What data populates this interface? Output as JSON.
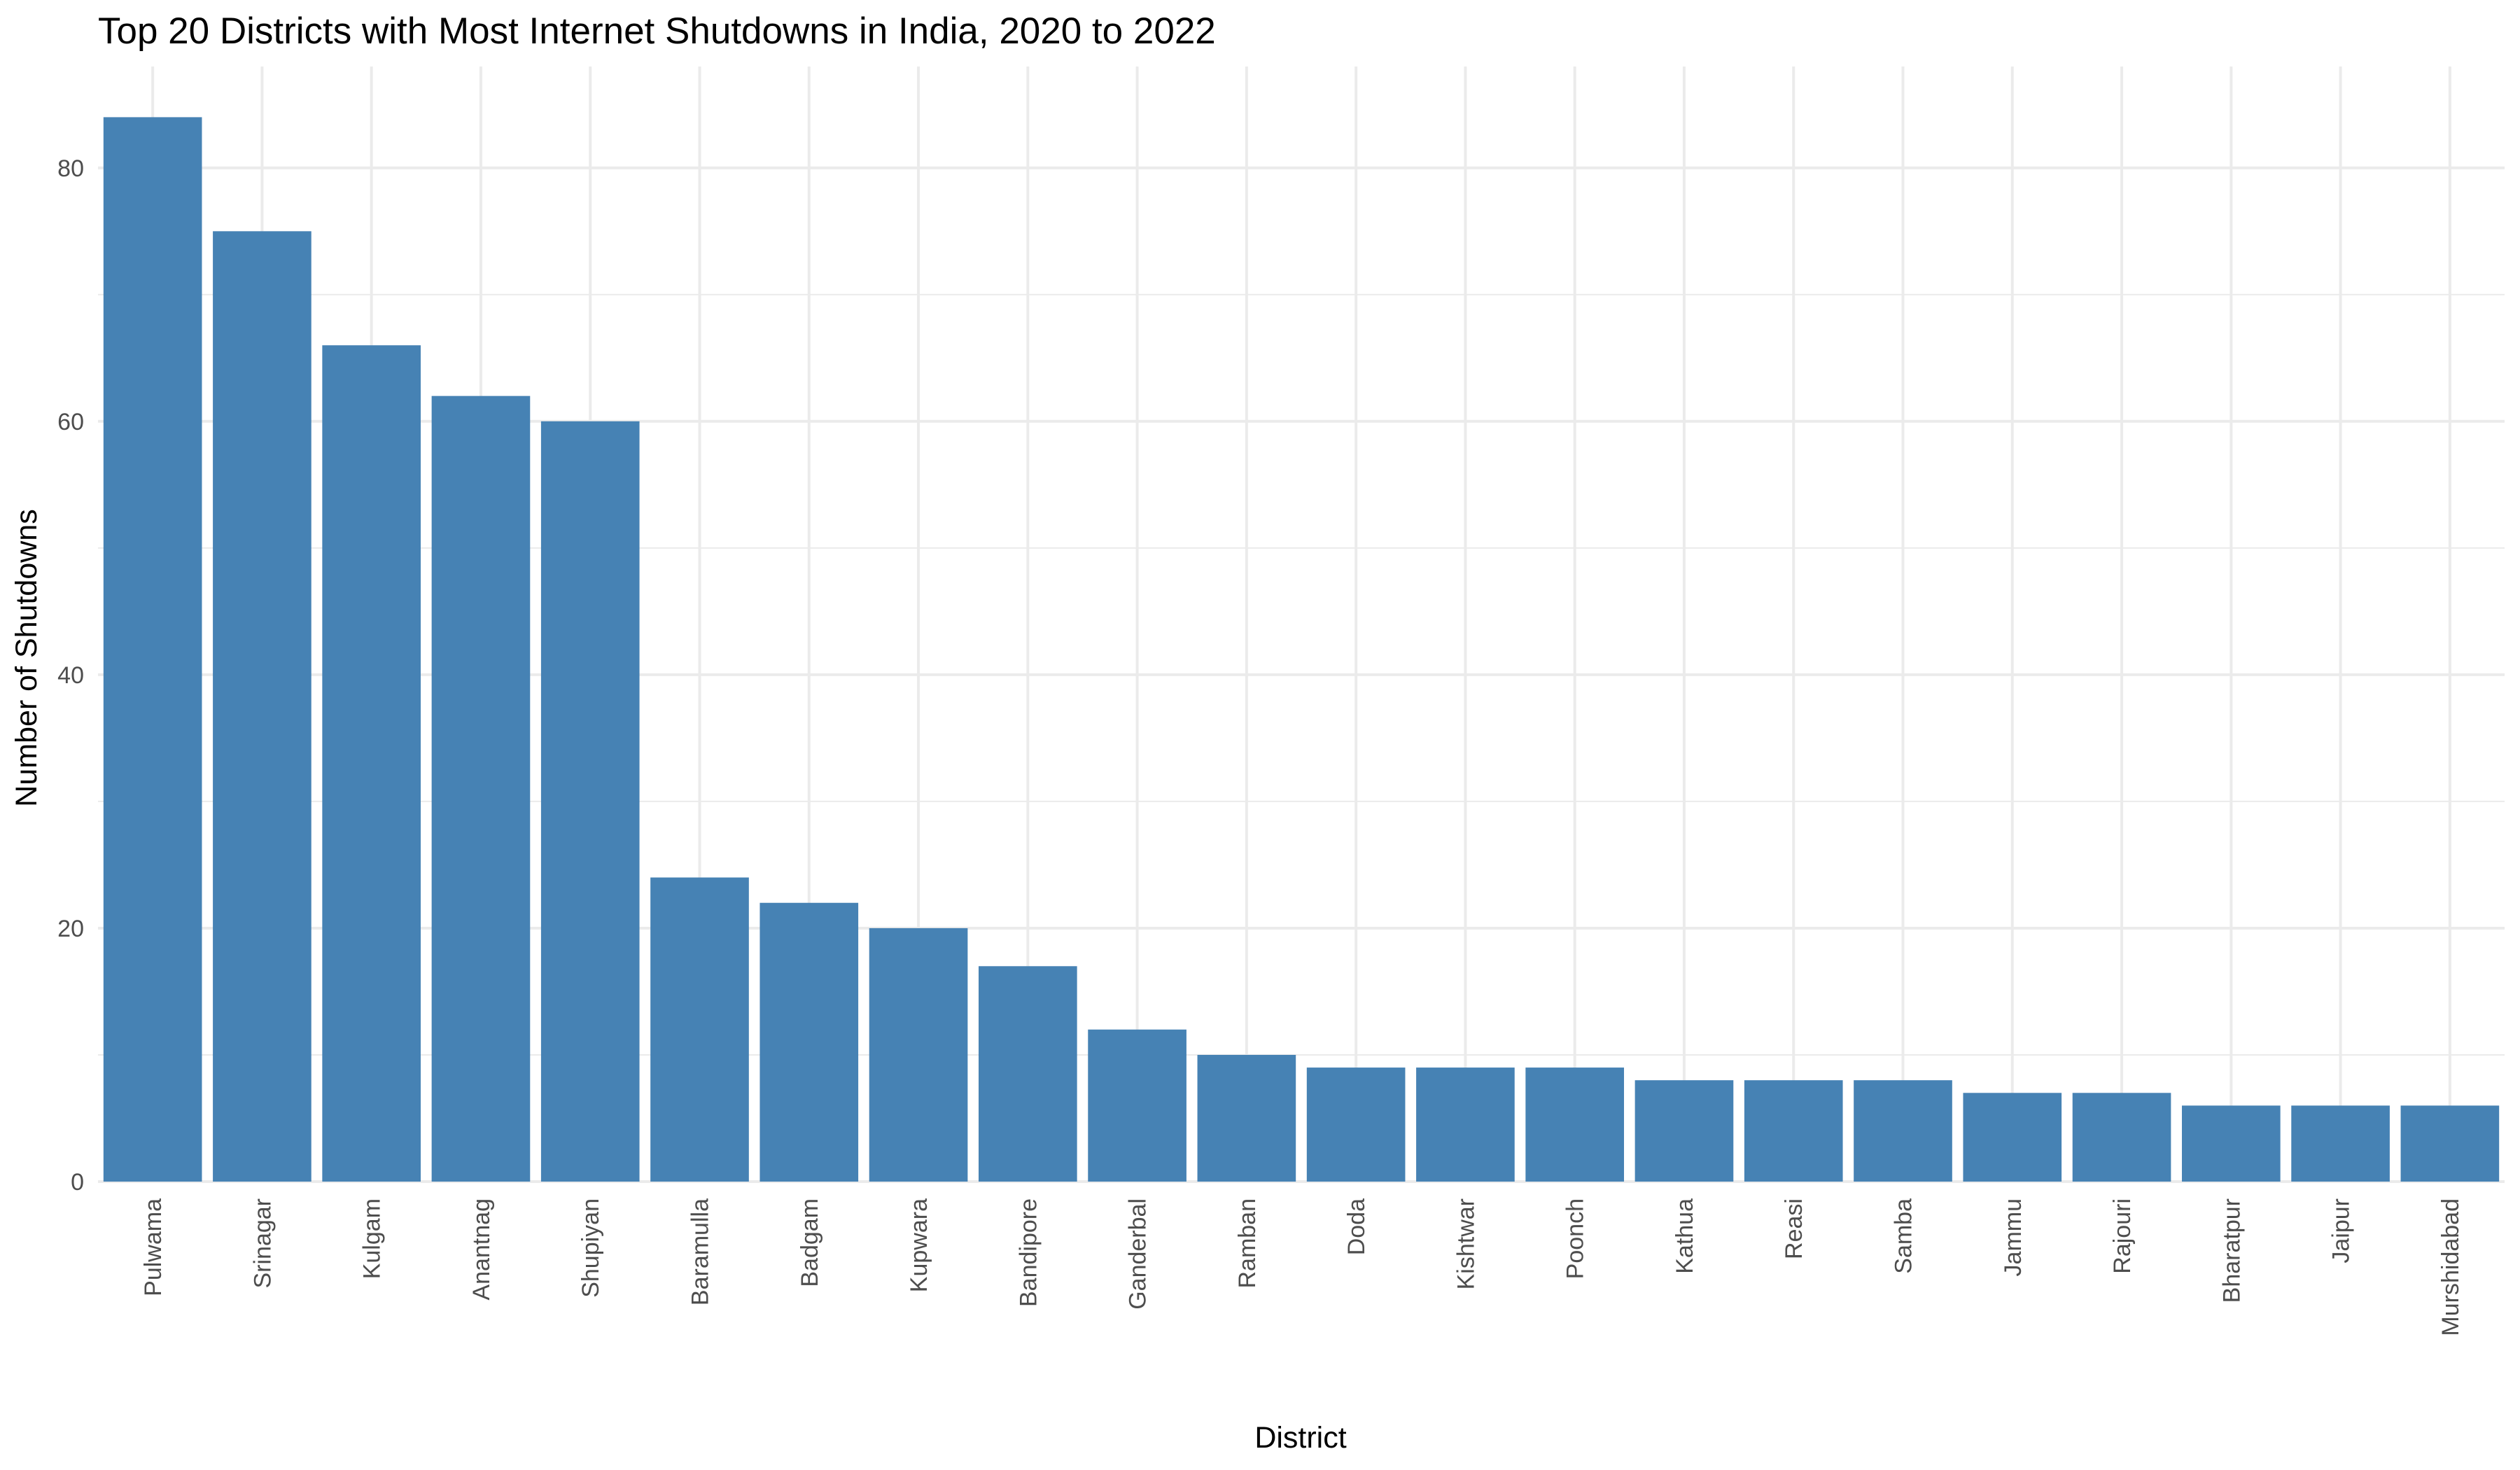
{
  "chart_data": {
    "type": "bar",
    "title": "Top 20 Districts with Most Internet Shutdowns in India, 2020 to 2022",
    "xlabel": "District",
    "ylabel": "Number of Shutdowns",
    "categories": [
      "Pulwama",
      "Srinagar",
      "Kulgam",
      "Anantnag",
      "Shupiyan",
      "Baramulla",
      "Badgam",
      "Kupwara",
      "Bandipore",
      "Ganderbal",
      "Ramban",
      "Doda",
      "Kishtwar",
      "Poonch",
      "Kathua",
      "Reasi",
      "Samba",
      "Jammu",
      "Rajouri",
      "Bharatpur",
      "Jaipur",
      "Murshidabad"
    ],
    "values": [
      84,
      75,
      66,
      62,
      60,
      24,
      22,
      20,
      17,
      12,
      10,
      9,
      9,
      9,
      8,
      8,
      8,
      7,
      7,
      6,
      6,
      6
    ],
    "ylim": [
      0,
      88
    ],
    "yticks": [
      0,
      20,
      40,
      60,
      80
    ],
    "ytick_labels": [
      "0",
      "20",
      "40",
      "60",
      "80"
    ],
    "grid": true,
    "bar_color": "#4682b4",
    "grid_color": "#ebebeb"
  }
}
